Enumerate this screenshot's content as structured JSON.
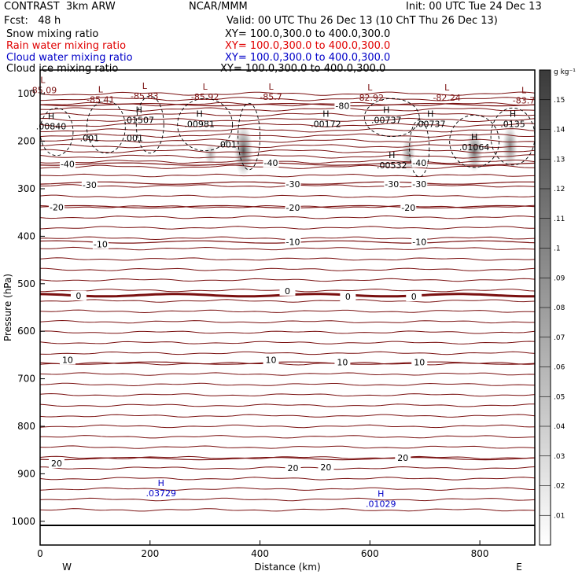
{
  "header": {
    "model": "CONTRAST  3km ARW",
    "org": "NCAR/MMM",
    "init": "Init: 00 UTC Tue 24 Dec 13",
    "fcst": "Fcst:   48 h",
    "valid": "Valid: 00 UTC Thu 26 Dec 13 (10 ChT Thu 26 Dec 13)"
  },
  "fields": [
    {
      "name": "Snow mixing ratio",
      "xy": "XY= 100.0,300.0 to 400.0,300.0",
      "color": "#000000"
    },
    {
      "name": "Rain water mixing ratio",
      "xy": "XY= 100.0,300.0 to 400.0,300.0",
      "color": "#e00000"
    },
    {
      "name": "Cloud water mixing ratio",
      "xy": "XY= 100.0,300.0 to 400.0,300.0",
      "color": "#0000c8"
    },
    {
      "name": "Cloud ice mixing ratio",
      "xy": "XY= 100.0,300.0 to 400.0,300.0",
      "color": "#000000"
    }
  ],
  "colors": {
    "temp_contour": "#7a1010",
    "cloud_water": "#0000c8",
    "axis": "#000000"
  },
  "chart_data": {
    "type": "cross-section contour",
    "xlabel": "Distance (km)",
    "ylabel": "Pressure (hPa)",
    "xlim": [
      0,
      900
    ],
    "ylim": [
      1050,
      50
    ],
    "x_ticks": [
      0,
      200,
      400,
      600,
      800
    ],
    "y_ticks": [
      100,
      200,
      300,
      400,
      500,
      600,
      700,
      800,
      900,
      1000
    ],
    "edge_labels": {
      "left": "W",
      "right": "E"
    },
    "colorbar": {
      "unit": "g kg⁻¹",
      "ticks": [
        ".01",
        ".02",
        ".03",
        ".04",
        ".05",
        ".06",
        ".07",
        ".08",
        ".09",
        ".1",
        ".11",
        ".12",
        ".13",
        ".14",
        ".15"
      ],
      "max": 0.16
    },
    "temperature_contours": [
      {
        "label": "-80",
        "p": 123
      },
      {
        "label": "-40",
        "p": 248
      },
      {
        "label": "-30",
        "p": 288
      },
      {
        "label": "-20",
        "p": 338
      },
      {
        "label": "-10",
        "p": 412
      },
      {
        "label": "0",
        "p": 524,
        "bold": true
      },
      {
        "label": "10",
        "p": 667
      },
      {
        "label": "20",
        "p": 868
      }
    ],
    "contour_labels": [
      {
        "text": "-40",
        "x": 50,
        "p": 248
      },
      {
        "text": "-40",
        "x": 420,
        "p": 245
      },
      {
        "text": "-40",
        "x": 690,
        "p": 245
      },
      {
        "text": "-30",
        "x": 90,
        "p": 292
      },
      {
        "text": "-30",
        "x": 460,
        "p": 290
      },
      {
        "text": "-30",
        "x": 640,
        "p": 290
      },
      {
        "text": "-30",
        "x": 690,
        "p": 290
      },
      {
        "text": "-20",
        "x": 30,
        "p": 339
      },
      {
        "text": "-20",
        "x": 460,
        "p": 340
      },
      {
        "text": "-20",
        "x": 670,
        "p": 340
      },
      {
        "text": "-10",
        "x": 110,
        "p": 417
      },
      {
        "text": "-10",
        "x": 460,
        "p": 412
      },
      {
        "text": "-10",
        "x": 690,
        "p": 412
      },
      {
        "text": "0",
        "x": 70,
        "p": 525
      },
      {
        "text": "0",
        "x": 450,
        "p": 515
      },
      {
        "text": "0",
        "x": 560,
        "p": 527
      },
      {
        "text": "0",
        "x": 680,
        "p": 527
      },
      {
        "text": "10",
        "x": 50,
        "p": 660
      },
      {
        "text": "10",
        "x": 420,
        "p": 660
      },
      {
        "text": "10",
        "x": 550,
        "p": 665
      },
      {
        "text": "10",
        "x": 690,
        "p": 665
      },
      {
        "text": "20",
        "x": 30,
        "p": 878
      },
      {
        "text": "20",
        "x": 460,
        "p": 888
      },
      {
        "text": "20",
        "x": 520,
        "p": 886
      },
      {
        "text": "20",
        "x": 660,
        "p": 866
      },
      {
        "text": "-80",
        "x": 550,
        "p": 125
      }
    ],
    "lows": [
      {
        "x": 5,
        "p": 92,
        "value": "-85.09"
      },
      {
        "x": 110,
        "p": 112,
        "value": "-85.41"
      },
      {
        "x": 190,
        "p": 105,
        "value": "-85.83"
      },
      {
        "x": 300,
        "p": 106,
        "value": "-85.92"
      },
      {
        "x": 420,
        "p": 106,
        "value": "-85.7"
      },
      {
        "x": 600,
        "p": 108,
        "value": "-82.92"
      },
      {
        "x": 740,
        "p": 108,
        "value": "-82.24"
      },
      {
        "x": 880,
        "p": 114,
        "value": "-83.7"
      }
    ],
    "highs": [
      {
        "x": 20,
        "p": 168,
        "value": ".00840"
      },
      {
        "x": 180,
        "p": 155,
        "value": ".01507"
      },
      {
        "x": 290,
        "p": 163,
        "value": ".00981"
      },
      {
        "x": 520,
        "p": 163,
        "value": ".00172"
      },
      {
        "x": 630,
        "p": 155,
        "value": ".00737"
      },
      {
        "x": 710,
        "p": 163,
        "value": ".00737"
      },
      {
        "x": 860,
        "p": 163,
        "value": ".0135"
      },
      {
        "x": 790,
        "p": 212,
        "value": ".01064"
      },
      {
        "x": 640,
        "p": 250,
        "value": ".00532"
      }
    ],
    "dashed_contour_labels": [
      {
        "x": 90,
        "p": 200,
        "value": ".001"
      },
      {
        "x": 170,
        "p": 200,
        "value": ".001"
      },
      {
        "x": 340,
        "p": 213,
        "value": ".001"
      }
    ],
    "cloud_water_highs": [
      {
        "x": 220,
        "p": 942,
        "value": ".03729"
      },
      {
        "x": 620,
        "p": 965,
        "value": ".01029"
      }
    ],
    "shaded_cores": [
      {
        "x": 370,
        "p_top": 165,
        "p_bot": 275,
        "intensity": 0.15
      },
      {
        "x": 790,
        "p_top": 175,
        "p_bot": 265,
        "intensity": 0.11
      },
      {
        "x": 855,
        "p_top": 165,
        "p_bot": 255,
        "intensity": 0.09
      },
      {
        "x": 670,
        "p_top": 190,
        "p_bot": 265,
        "intensity": 0.07
      },
      {
        "x": 310,
        "p_top": 205,
        "p_bot": 250,
        "intensity": 0.05
      }
    ]
  }
}
